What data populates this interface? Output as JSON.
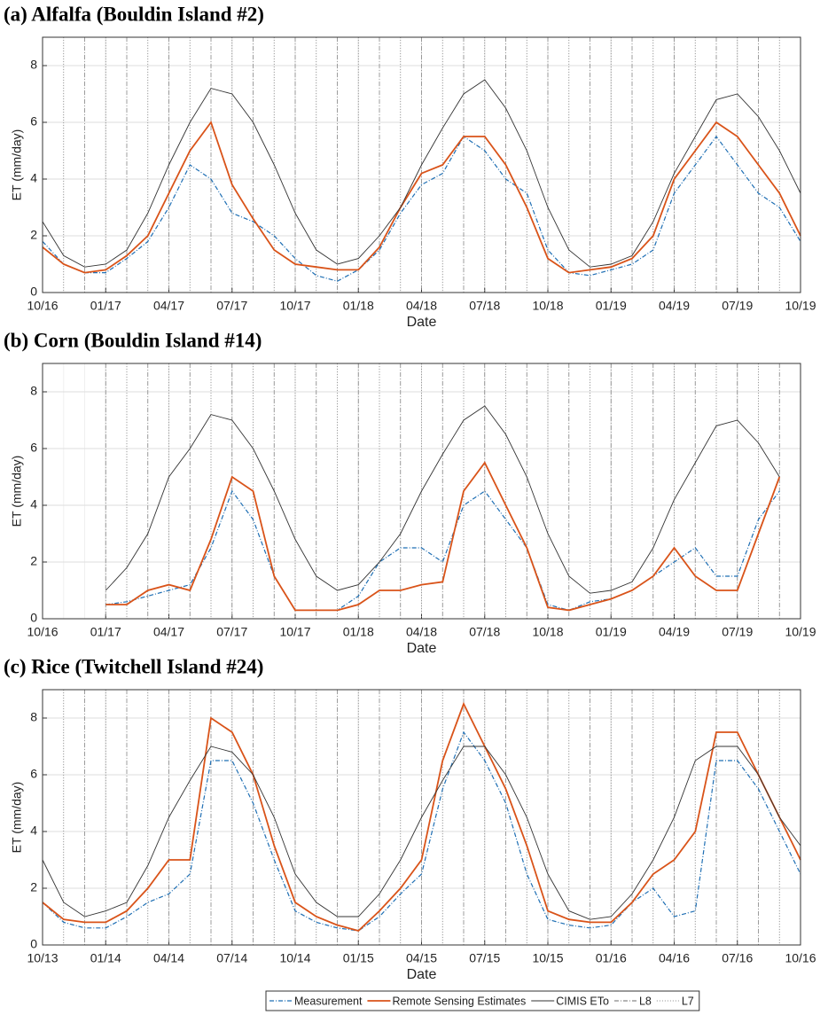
{
  "chart_data": [
    {
      "type": "line",
      "title": "(a) Alfalfa (Bouldin Island #2)",
      "xlabel": "Date",
      "ylabel": "ET (mm/day)",
      "x": [
        "10/16",
        "11/16",
        "12/16",
        "01/17",
        "02/17",
        "03/17",
        "04/17",
        "05/17",
        "06/17",
        "07/17",
        "08/17",
        "09/17",
        "10/17",
        "11/17",
        "12/17",
        "01/18",
        "02/18",
        "03/18",
        "04/18",
        "05/18",
        "06/18",
        "07/18",
        "08/18",
        "09/18",
        "10/18",
        "11/18",
        "12/18",
        "01/19",
        "02/19",
        "03/19",
        "04/19",
        "05/19",
        "06/19",
        "07/19",
        "08/19",
        "09/19",
        "10/19"
      ],
      "xticks": [
        "10/16",
        "01/17",
        "04/17",
        "07/17",
        "10/17",
        "01/18",
        "04/18",
        "07/18",
        "10/18",
        "01/19",
        "04/19",
        "07/19",
        "10/19"
      ],
      "ylim": [
        0,
        9
      ],
      "yticks": [
        0,
        2,
        4,
        6,
        8
      ],
      "grid": true,
      "series": [
        {
          "name": "Measurement",
          "color": "#1f6fb4",
          "style": "dashdot",
          "values": [
            1.8,
            1.0,
            0.7,
            0.7,
            1.2,
            1.8,
            3.0,
            4.5,
            4.0,
            2.8,
            2.5,
            2.0,
            1.2,
            0.6,
            0.4,
            0.8,
            1.5,
            2.8,
            3.8,
            4.2,
            5.5,
            5.0,
            4.0,
            3.5,
            1.5,
            0.7,
            0.6,
            0.8,
            1.0,
            1.5,
            3.5,
            4.5,
            5.5,
            4.5,
            3.5,
            3.0,
            1.8
          ]
        },
        {
          "name": "Remote Sensing Estimates",
          "color": "#d95319",
          "style": "solid",
          "values": [
            1.6,
            1.0,
            0.7,
            0.8,
            1.3,
            2.0,
            3.5,
            5.0,
            6.0,
            3.8,
            2.6,
            1.5,
            1.0,
            0.9,
            0.8,
            0.8,
            1.6,
            3.0,
            4.2,
            4.5,
            5.5,
            5.5,
            4.5,
            3.0,
            1.2,
            0.7,
            0.8,
            0.9,
            1.2,
            2.0,
            4.0,
            5.0,
            6.0,
            5.5,
            4.5,
            3.5,
            2.0
          ]
        },
        {
          "name": "CIMIS ETo",
          "color": "#333333",
          "style": "thin",
          "values": [
            2.5,
            1.3,
            0.9,
            1.0,
            1.5,
            2.8,
            4.5,
            6.0,
            7.2,
            7.0,
            6.0,
            4.5,
            2.8,
            1.5,
            1.0,
            1.2,
            2.0,
            3.0,
            4.5,
            5.8,
            7.0,
            7.5,
            6.5,
            5.0,
            3.0,
            1.5,
            0.9,
            1.0,
            1.3,
            2.5,
            4.2,
            5.5,
            6.8,
            7.0,
            6.2,
            5.0,
            3.5
          ]
        }
      ],
      "overpasses": [
        {
          "name": "L8",
          "color": "#888888",
          "style": "dashdot",
          "dates": [
            "10/16",
            "12/16",
            "02/17",
            "04/17",
            "06/17",
            "08/17",
            "10/17",
            "12/17",
            "02/18",
            "04/18",
            "06/18",
            "08/18",
            "10/18",
            "12/18",
            "02/19",
            "04/19",
            "06/19",
            "08/19",
            "10/19"
          ]
        },
        {
          "name": "L7",
          "color": "#888888",
          "style": "dot",
          "dates": [
            "11/16",
            "01/17",
            "03/17",
            "05/17",
            "07/17",
            "09/17",
            "11/17",
            "01/18",
            "03/18",
            "05/18",
            "07/18",
            "09/18",
            "11/18",
            "01/19",
            "03/19",
            "05/19",
            "07/19",
            "09/19"
          ]
        }
      ]
    },
    {
      "type": "line",
      "title": "(b) Corn (Bouldin Island #14)",
      "xlabel": "Date",
      "ylabel": "ET (mm/day)",
      "x": [
        "10/16",
        "11/16",
        "12/16",
        "01/17",
        "02/17",
        "03/17",
        "04/17",
        "05/17",
        "06/17",
        "07/17",
        "08/17",
        "09/17",
        "10/17",
        "11/17",
        "12/17",
        "01/18",
        "02/18",
        "03/18",
        "04/18",
        "05/18",
        "06/18",
        "07/18",
        "08/18",
        "09/18",
        "10/18",
        "11/18",
        "12/18",
        "01/19",
        "02/19",
        "03/19",
        "04/19",
        "05/19",
        "06/19",
        "07/19",
        "08/19",
        "09/19",
        "10/19"
      ],
      "xticks": [
        "10/16",
        "01/17",
        "04/17",
        "07/17",
        "10/17",
        "01/18",
        "04/18",
        "07/18",
        "10/18",
        "01/19",
        "04/19",
        "07/19",
        "10/19"
      ],
      "ylim": [
        0,
        9
      ],
      "yticks": [
        0,
        2,
        4,
        6,
        8
      ],
      "grid": true,
      "series": [
        {
          "color": "#1f6fb4",
          "style": "dashdot",
          "values": [
            null,
            null,
            null,
            0.5,
            0.6,
            0.8,
            1.0,
            1.2,
            2.5,
            4.5,
            3.5,
            1.5,
            0.3,
            0.3,
            0.3,
            0.8,
            2.0,
            2.5,
            2.5,
            2.0,
            4.0,
            4.5,
            3.5,
            2.5,
            0.5,
            0.3,
            0.6,
            0.7,
            1.0,
            1.5,
            2.0,
            2.5,
            1.5,
            1.5,
            3.5,
            4.5,
            null
          ]
        },
        {
          "color": "#d95319",
          "style": "solid",
          "values": [
            null,
            null,
            null,
            0.5,
            0.5,
            1.0,
            1.2,
            1.0,
            2.8,
            5.0,
            4.5,
            1.5,
            0.3,
            0.3,
            0.3,
            0.5,
            1.0,
            1.0,
            1.2,
            1.3,
            4.5,
            5.5,
            4.0,
            2.5,
            0.4,
            0.3,
            0.5,
            0.7,
            1.0,
            1.5,
            2.5,
            1.5,
            1.0,
            1.0,
            3.0,
            5.0,
            null
          ]
        },
        {
          "color": "#333333",
          "style": "thin",
          "values": [
            null,
            null,
            null,
            1.0,
            1.8,
            3.0,
            5.0,
            6.0,
            7.2,
            7.0,
            6.0,
            4.5,
            2.8,
            1.5,
            1.0,
            1.2,
            2.0,
            3.0,
            4.5,
            5.8,
            7.0,
            7.5,
            6.5,
            5.0,
            3.0,
            1.5,
            0.9,
            1.0,
            1.3,
            2.5,
            4.2,
            5.5,
            6.8,
            7.0,
            6.2,
            5.0,
            null
          ]
        }
      ],
      "overpasses": [
        {
          "color": "#888888",
          "style": "dashdot",
          "dates": [
            "01/17",
            "03/17",
            "05/17",
            "07/17",
            "09/17",
            "11/17",
            "01/18",
            "03/18",
            "05/18",
            "07/18",
            "09/18",
            "11/18",
            "01/19",
            "03/19",
            "05/19",
            "07/19",
            "09/19"
          ]
        },
        {
          "color": "#888888",
          "style": "dot",
          "dates": [
            "02/17",
            "04/17",
            "06/17",
            "08/17",
            "10/17",
            "12/17",
            "02/18",
            "04/18",
            "06/18",
            "08/18",
            "10/18",
            "12/18",
            "02/19",
            "04/19",
            "06/19",
            "08/19"
          ]
        }
      ]
    },
    {
      "type": "line",
      "title": "(c) Rice (Twitchell Island #24)",
      "xlabel": "Date",
      "ylabel": "ET (mm/day)",
      "x": [
        "10/13",
        "11/13",
        "12/13",
        "01/14",
        "02/14",
        "03/14",
        "04/14",
        "05/14",
        "06/14",
        "07/14",
        "08/14",
        "09/14",
        "10/14",
        "11/14",
        "12/14",
        "01/15",
        "02/15",
        "03/15",
        "04/15",
        "05/15",
        "06/15",
        "07/15",
        "08/15",
        "09/15",
        "10/15",
        "11/15",
        "12/15",
        "01/16",
        "02/16",
        "03/16",
        "04/16",
        "05/16",
        "06/16",
        "07/16",
        "08/16",
        "09/16",
        "10/16"
      ],
      "xticks": [
        "10/13",
        "01/14",
        "04/14",
        "07/14",
        "10/14",
        "01/15",
        "04/15",
        "07/15",
        "10/15",
        "01/16",
        "04/16",
        "07/16",
        "10/16"
      ],
      "ylim": [
        0,
        9
      ],
      "yticks": [
        0,
        2,
        4,
        6,
        8
      ],
      "grid": true,
      "series": [
        {
          "color": "#1f6fb4",
          "style": "dashdot",
          "values": [
            1.5,
            0.8,
            0.6,
            0.6,
            1.0,
            1.5,
            1.8,
            2.5,
            6.5,
            6.5,
            5.0,
            3.0,
            1.2,
            0.8,
            0.6,
            0.5,
            1.0,
            1.8,
            2.5,
            5.5,
            7.5,
            6.5,
            5.0,
            2.5,
            0.9,
            0.7,
            0.6,
            0.7,
            1.5,
            2.0,
            1.0,
            1.2,
            6.5,
            6.5,
            5.5,
            4.0,
            2.5
          ]
        },
        {
          "color": "#d95319",
          "style": "solid",
          "values": [
            1.5,
            0.9,
            0.8,
            0.8,
            1.2,
            2.0,
            3.0,
            3.0,
            8.0,
            7.5,
            6.0,
            3.5,
            1.5,
            1.0,
            0.7,
            0.5,
            1.2,
            2.0,
            3.0,
            6.5,
            8.5,
            7.0,
            5.5,
            3.5,
            1.2,
            0.9,
            0.8,
            0.8,
            1.5,
            2.5,
            3.0,
            4.0,
            7.5,
            7.5,
            6.0,
            4.5,
            3.0
          ]
        },
        {
          "color": "#333333",
          "style": "thin",
          "values": [
            3.0,
            1.5,
            1.0,
            1.2,
            1.5,
            2.8,
            4.5,
            5.8,
            7.0,
            6.8,
            6.0,
            4.5,
            2.5,
            1.5,
            1.0,
            1.0,
            1.8,
            3.0,
            4.5,
            5.8,
            7.0,
            7.0,
            6.0,
            4.5,
            2.5,
            1.2,
            0.9,
            1.0,
            1.8,
            3.0,
            4.5,
            6.5,
            7.0,
            7.0,
            6.0,
            4.5,
            3.5
          ]
        }
      ],
      "overpasses": [
        {
          "color": "#888888",
          "style": "dashdot",
          "dates": [
            "10/13",
            "12/13",
            "02/14",
            "04/14",
            "06/14",
            "08/14",
            "10/14",
            "12/14",
            "02/15",
            "04/15",
            "06/15",
            "08/15",
            "10/15",
            "12/15",
            "02/16",
            "04/16",
            "06/16",
            "08/16",
            "10/16"
          ]
        },
        {
          "color": "#888888",
          "style": "dot",
          "dates": [
            "11/13",
            "01/14",
            "03/14",
            "05/14",
            "07/14",
            "09/14",
            "11/14",
            "01/15",
            "03/15",
            "05/15",
            "07/15",
            "09/15",
            "11/15",
            "01/16",
            "03/16",
            "05/16",
            "07/16",
            "09/16"
          ]
        }
      ]
    }
  ]
}
